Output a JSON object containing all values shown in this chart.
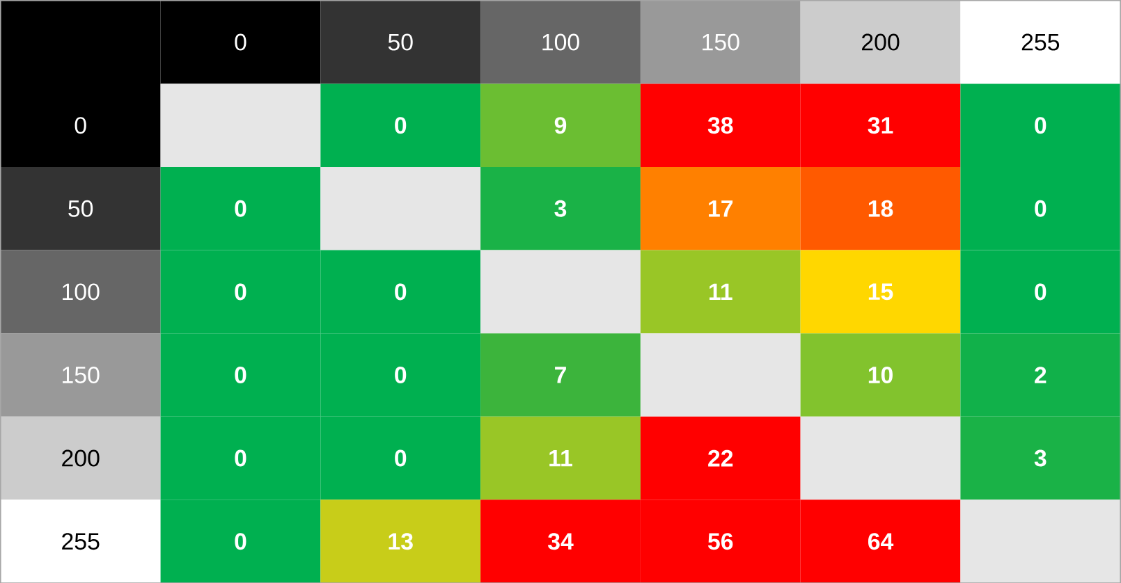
{
  "chart_data": {
    "type": "heatmap",
    "categories": [
      "0",
      "50",
      "100",
      "150",
      "200",
      "255"
    ],
    "y_categories": [
      "0",
      "50",
      "100",
      "150",
      "200",
      "255"
    ],
    "cells": [
      [
        null,
        0,
        9,
        38,
        31,
        0
      ],
      [
        0,
        null,
        3,
        17,
        18,
        0
      ],
      [
        0,
        0,
        null,
        11,
        15,
        0
      ],
      [
        0,
        0,
        7,
        null,
        10,
        2
      ],
      [
        0,
        0,
        11,
        22,
        null,
        3
      ],
      [
        0,
        13,
        34,
        56,
        64,
        null
      ]
    ],
    "data_labels": true
  }
}
